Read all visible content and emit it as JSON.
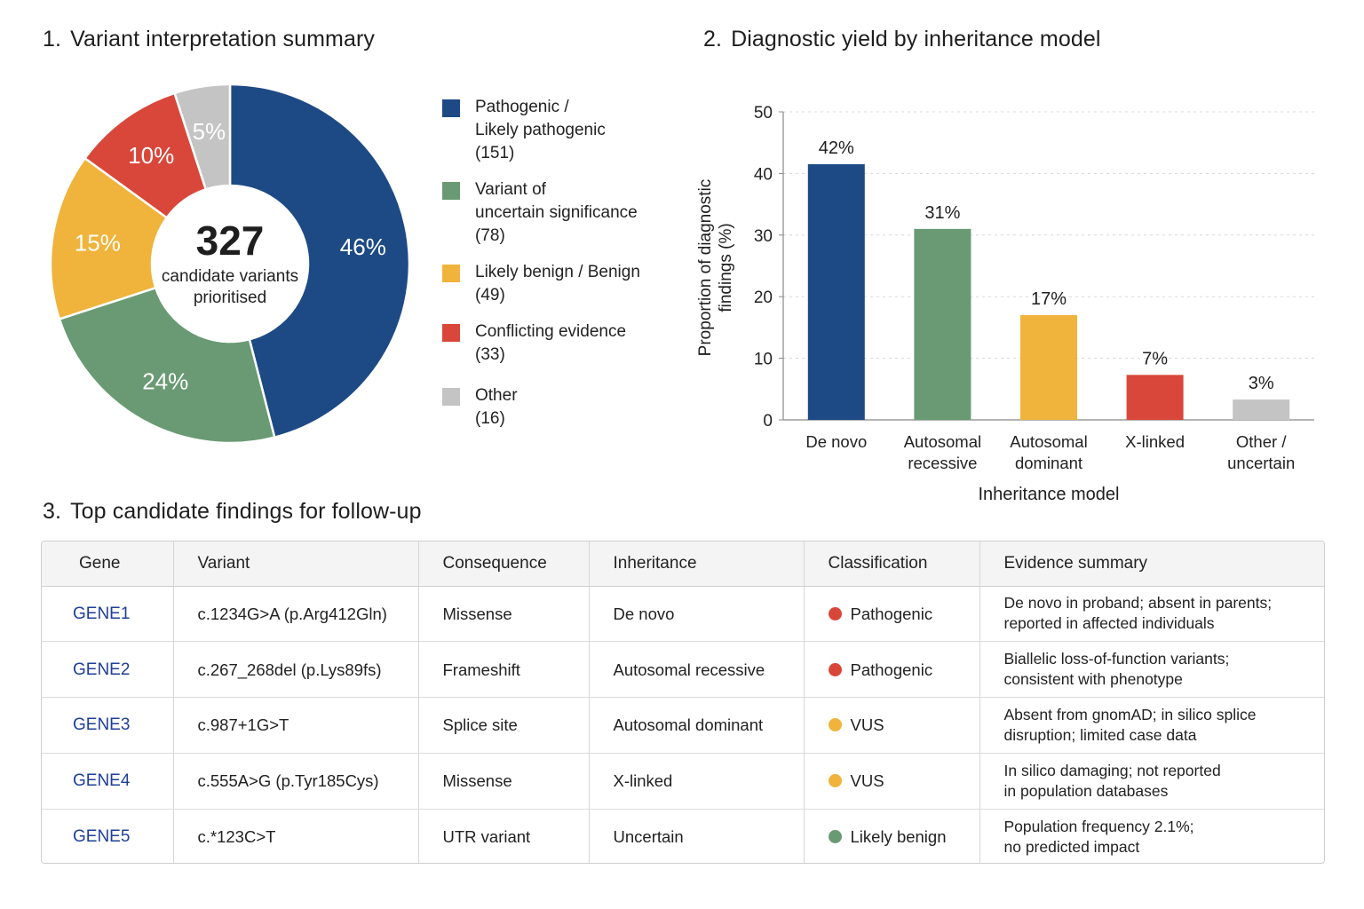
{
  "panel1": {
    "num": "1.",
    "title": "Variant interpretation summary",
    "center_value": "327",
    "center_caption_line1": "candidate variants",
    "center_caption_line2": "prioritised"
  },
  "panel2": {
    "num": "2.",
    "title": "Diagnostic yield by inheritance model"
  },
  "panel3": {
    "num": "3.",
    "title": "Top candidate findings for follow-up"
  },
  "chart_data": [
    {
      "type": "pie",
      "title": "Variant interpretation summary",
      "total": 327,
      "slices": [
        {
          "label": "Pathogenic /\nLikely pathogenic",
          "count": "(151)",
          "value": 46,
          "value_label": "46%",
          "color": "#1d4a85"
        },
        {
          "label": "Variant of\nuncertain significance",
          "count": "(78)",
          "value": 24,
          "value_label": "24%",
          "color": "#6a9a74"
        },
        {
          "label": "Likely benign / Benign",
          "count": "(49)",
          "value": 15,
          "value_label": "15%",
          "color": "#f0b33b"
        },
        {
          "label": "Conflicting evidence",
          "count": "(33)",
          "value": 10,
          "value_label": "10%",
          "color": "#d9473a"
        },
        {
          "label": "Other",
          "count": "(16)",
          "value": 5,
          "value_label": "5%",
          "color": "#c4c4c4"
        }
      ]
    },
    {
      "type": "bar",
      "title": "Diagnostic yield by inheritance model",
      "xlabel": "Inheritance model",
      "ylabel": "Proportion of diagnostic findings (%)",
      "ylim": [
        0,
        50
      ],
      "yticks": [
        0,
        10,
        20,
        30,
        40,
        50
      ],
      "grid": "horizontal dashed",
      "categories": [
        "De novo",
        "Autosomal recessive",
        "Autosomal dominant",
        "X-linked",
        "Other / uncertain"
      ],
      "category_lines": [
        [
          "De novo"
        ],
        [
          "Autosomal",
          "recessive"
        ],
        [
          "Autosomal",
          "dominant"
        ],
        [
          "X-linked"
        ],
        [
          "Other /",
          "uncertain"
        ]
      ],
      "values": [
        41.5,
        31,
        17,
        7.3,
        3.3
      ],
      "value_labels": [
        "42%",
        "31%",
        "17%",
        "7%",
        "3%"
      ],
      "colors": [
        "#1d4a85",
        "#6a9a74",
        "#f0b33b",
        "#d9473a",
        "#c4c4c4"
      ]
    }
  ],
  "table": {
    "headers": [
      "Gene",
      "Variant",
      "Consequence",
      "Inheritance",
      "Classification",
      "Evidence summary"
    ],
    "rows": [
      {
        "gene": "GENE1",
        "variant": "c.1234G>A (p.Arg412Gln)",
        "consequence": "Missense",
        "inheritance": "De novo",
        "classification": "Pathogenic",
        "class_color": "#d9473a",
        "evidence": "De novo in proband; absent in parents;\nreported in affected individuals"
      },
      {
        "gene": "GENE2",
        "variant": "c.267_268del (p.Lys89fs)",
        "consequence": "Frameshift",
        "inheritance": "Autosomal recessive",
        "classification": "Pathogenic",
        "class_color": "#d9473a",
        "evidence": "Biallelic loss-of-function variants;\nconsistent with phenotype"
      },
      {
        "gene": "GENE3",
        "variant": "c.987+1G>T",
        "consequence": "Splice site",
        "inheritance": "Autosomal dominant",
        "classification": "VUS",
        "class_color": "#f0b33b",
        "evidence": "Absent from gnomAD; in silico splice\ndisruption; limited case data"
      },
      {
        "gene": "GENE4",
        "variant": "c.555A>G (p.Tyr185Cys)",
        "consequence": "Missense",
        "inheritance": "X-linked",
        "classification": "VUS",
        "class_color": "#f0b33b",
        "evidence": "In silico damaging; not reported\nin population databases"
      },
      {
        "gene": "GENE5",
        "variant": "c.*123C>T",
        "consequence": "UTR variant",
        "inheritance": "Uncertain",
        "classification": "Likely benign",
        "class_color": "#6a9a74",
        "evidence": "Population frequency 2.1%;\nno predicted impact"
      }
    ]
  }
}
